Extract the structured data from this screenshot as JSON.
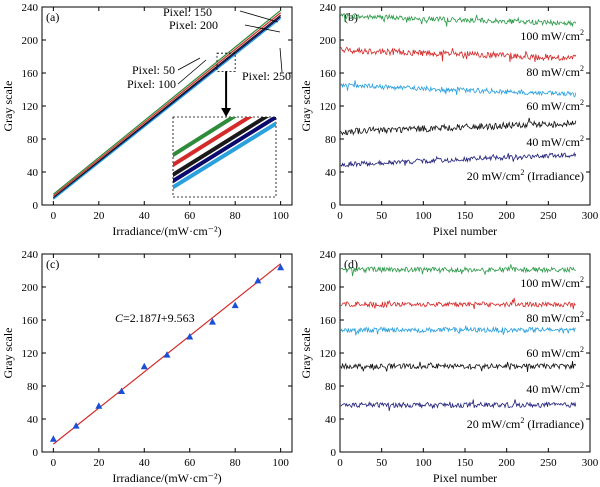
{
  "chart_data": [
    {
      "panel": "(a)",
      "type": "line",
      "xlabel": "Irradiance/(mW·cm⁻²)",
      "ylabel": "Gray scale",
      "xlim": [
        -5,
        105
      ],
      "ylim": [
        0,
        240
      ],
      "xticks": [
        0,
        20,
        40,
        60,
        80,
        100
      ],
      "yticks": [
        0,
        40,
        80,
        120,
        160,
        200,
        240
      ],
      "series": [
        {
          "name": "Pixel: 50",
          "color": "#2e8b3a",
          "x": [
            0,
            100
          ],
          "y": [
            13,
            236
          ]
        },
        {
          "name": "Pixel: 100",
          "color": "#0a0a6e",
          "x": [
            0,
            100
          ],
          "y": [
            8,
            228
          ]
        },
        {
          "name": "Pixel: 150",
          "color": "#d42a2a",
          "x": [
            0,
            100
          ],
          "y": [
            11,
            233
          ]
        },
        {
          "name": "Pixel: 200",
          "color": "#1a1a1a",
          "x": [
            0,
            100
          ],
          "y": [
            9,
            230
          ]
        },
        {
          "name": "Pixel: 250",
          "color": "#2aa0dc",
          "x": [
            0,
            100
          ],
          "y": [
            7,
            226
          ]
        }
      ],
      "labels": [
        "Pixel: 150",
        "Pixel: 200",
        "Pixel: 50",
        "Pixel: 100",
        "Pixel: 250"
      ],
      "inset": {
        "zoom_x": [
          72,
          80
        ],
        "zoom_y": [
          162,
          184
        ]
      }
    },
    {
      "panel": "(b)",
      "type": "line",
      "xlabel": "Pixel number",
      "ylabel": "Gray scale",
      "xlim": [
        0,
        300
      ],
      "ylim": [
        0,
        240
      ],
      "xticks": [
        0,
        50,
        100,
        150,
        200,
        250,
        300
      ],
      "yticks": [
        0,
        40,
        80,
        120,
        160,
        200,
        240
      ],
      "x_range": [
        1,
        283
      ],
      "series": [
        {
          "name": "100 mW/cm²",
          "color": "#2e9a4a",
          "start": 229,
          "end": 220,
          "noise": 3
        },
        {
          "name": "80 mW/cm²",
          "color": "#d42a2a",
          "start": 188,
          "end": 178,
          "noise": 4
        },
        {
          "name": "60 mW/cm²",
          "color": "#2aa0dc",
          "start": 145,
          "end": 134,
          "noise": 3
        },
        {
          "name": "40 mW/cm²",
          "color": "#111111",
          "start": 89,
          "end": 99,
          "noise": 4
        },
        {
          "name": "20 mW/cm² (Irradiance)",
          "color": "#20207a",
          "start": 49,
          "end": 61,
          "noise": 3
        }
      ]
    },
    {
      "panel": "(c)",
      "type": "scatter",
      "xlabel": "Irradiance/(mW·cm⁻²)",
      "ylabel": "Gray scale",
      "xlim": [
        -5,
        105
      ],
      "ylim": [
        0,
        240
      ],
      "xticks": [
        0,
        20,
        40,
        60,
        80,
        100
      ],
      "yticks": [
        0,
        40,
        80,
        120,
        160,
        200,
        240
      ],
      "points": {
        "color": "#1a4fd8",
        "x": [
          0,
          10,
          20,
          30,
          40,
          50,
          60,
          70,
          80,
          90,
          100
        ],
        "y": [
          16,
          32,
          56,
          74,
          104,
          118,
          140,
          158,
          178,
          208,
          224
        ]
      },
      "fit": {
        "color": "#d42a2a",
        "slope": 2.187,
        "intercept": 9.563,
        "x": [
          0,
          100
        ],
        "label": "C=2.187I+9.563"
      }
    },
    {
      "panel": "(d)",
      "type": "line",
      "xlabel": "Pixel number",
      "ylabel": "Gray scale",
      "xlim": [
        0,
        300
      ],
      "ylim": [
        0,
        240
      ],
      "xticks": [
        0,
        50,
        100,
        150,
        200,
        250,
        300
      ],
      "yticks": [
        0,
        40,
        80,
        120,
        160,
        200,
        240
      ],
      "x_range": [
        1,
        283
      ],
      "series": [
        {
          "name": "100 mW/cm²",
          "color": "#2e9a4a",
          "start": 221,
          "end": 221,
          "noise": 3
        },
        {
          "name": "80 mW/cm²",
          "color": "#d42a2a",
          "start": 179,
          "end": 179,
          "noise": 3
        },
        {
          "name": "60 mW/cm²",
          "color": "#2aa0dc",
          "start": 148,
          "end": 148,
          "noise": 3
        },
        {
          "name": "40 mW/cm²",
          "color": "#111111",
          "start": 104,
          "end": 104,
          "noise": 3
        },
        {
          "name": "20 mW/cm² (Irradiance)",
          "color": "#20207a",
          "start": 57,
          "end": 57,
          "noise": 3
        }
      ]
    }
  ]
}
